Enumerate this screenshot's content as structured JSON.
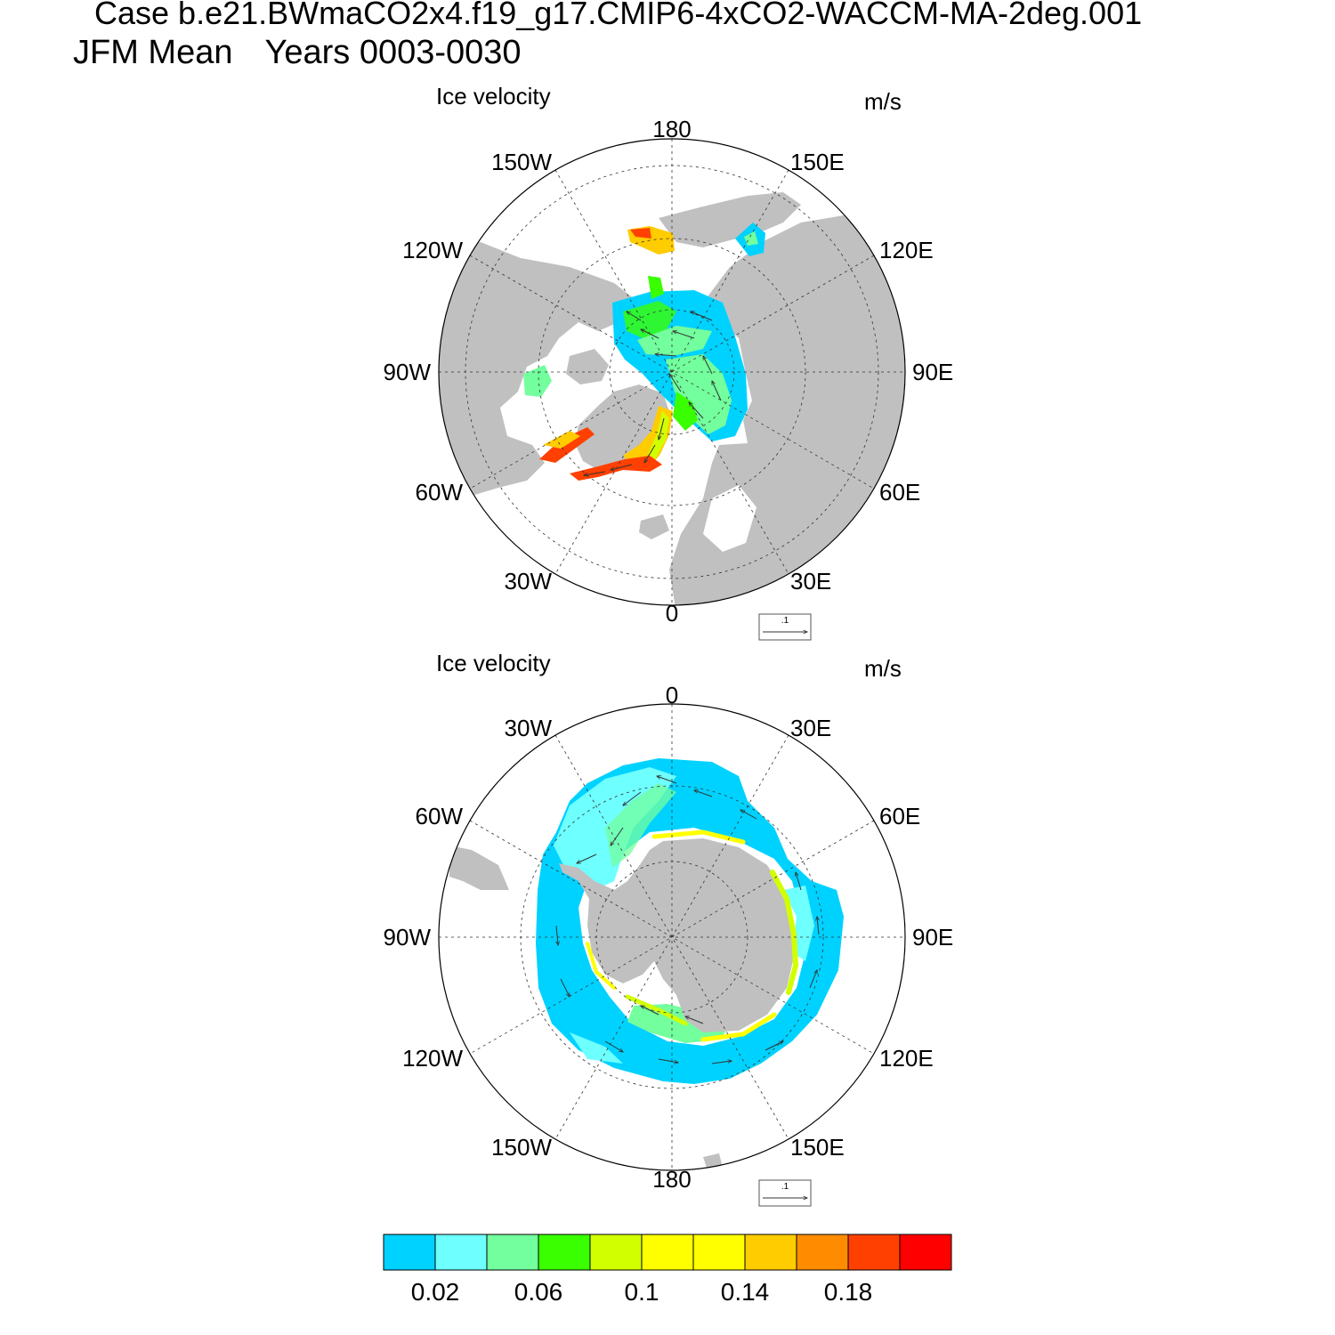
{
  "header": {
    "case_line": "Case b.e21.BWmaCO2x4.f19_g17.CMIP6-4xCO2-WACCM-MA-2deg.001",
    "season": "JFM Mean",
    "years": "Years 0003-0030"
  },
  "panels": [
    {
      "hemisphere": "north",
      "title": "Ice velocity",
      "units": "m/s",
      "lon_labels": [
        "180",
        "150E",
        "120E",
        "90E",
        "60E",
        "30E",
        "0",
        "30W",
        "60W",
        "90W",
        "120W",
        "150W"
      ],
      "ref_vector_label": ".1"
    },
    {
      "hemisphere": "south",
      "title": "Ice velocity",
      "units": "m/s",
      "lon_labels": [
        "0",
        "30E",
        "60E",
        "90E",
        "120E",
        "150E",
        "180",
        "150W",
        "120W",
        "90W",
        "60W",
        "30W"
      ],
      "ref_vector_label": ".1"
    }
  ],
  "colorbar": {
    "colors": [
      "#00d2ff",
      "#6effff",
      "#73ff9d",
      "#39ff00",
      "#d2ff00",
      "#ffff00",
      "#ffff00",
      "#ffcc00",
      "#ff8c00",
      "#ff4000",
      "#ff0000"
    ],
    "labels": [
      "0.02",
      "0.06",
      "0.1",
      "0.14",
      "0.18"
    ]
  },
  "style": {
    "land_color": "#c0c0c0"
  }
}
